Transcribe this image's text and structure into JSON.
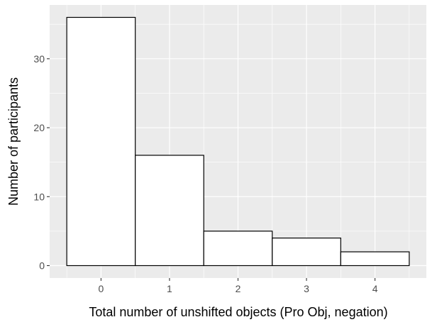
{
  "chart_data": {
    "type": "bar",
    "categories": [
      "0",
      "1",
      "2",
      "3",
      "4"
    ],
    "values": [
      36,
      16,
      5,
      4,
      2
    ],
    "xlabel": "Total number of unshifted objects (Pro Obj, negation)",
    "ylabel": "Number of participants",
    "x_ticks": [
      "0",
      "1",
      "2",
      "3",
      "4"
    ],
    "y_ticks": [
      "0",
      "10",
      "20",
      "30"
    ],
    "ylim": [
      -1.8,
      37.8
    ],
    "xlim": [
      -0.75,
      4.75
    ],
    "grid": true,
    "colors": {
      "panel_background": "#ebebeb",
      "grid_major": "#ffffff",
      "bar_fill": "#ffffff",
      "bar_outline": "#000000",
      "tick_label": "#4d4d4d"
    }
  }
}
